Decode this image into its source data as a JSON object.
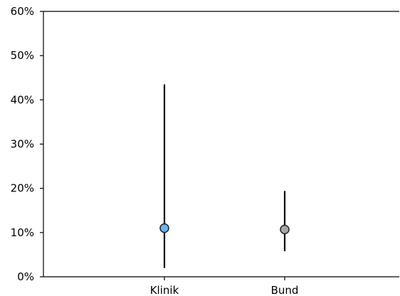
{
  "chart_data": {
    "type": "scatter",
    "title": "",
    "xlabel": "",
    "ylabel": "",
    "categories": [
      "Klinik",
      "Bund"
    ],
    "y_ticks": [
      "0%",
      "10%",
      "20%",
      "30%",
      "40%",
      "50%",
      "60%"
    ],
    "ylim": [
      0,
      60
    ],
    "grid": false,
    "series": [
      {
        "values": [
          11.0,
          10.7
        ],
        "lower": [
          2.0,
          5.8
        ],
        "upper": [
          43.5,
          19.4
        ],
        "colors": [
          "#6cb4f0",
          "#a6a6a6"
        ]
      }
    ]
  }
}
